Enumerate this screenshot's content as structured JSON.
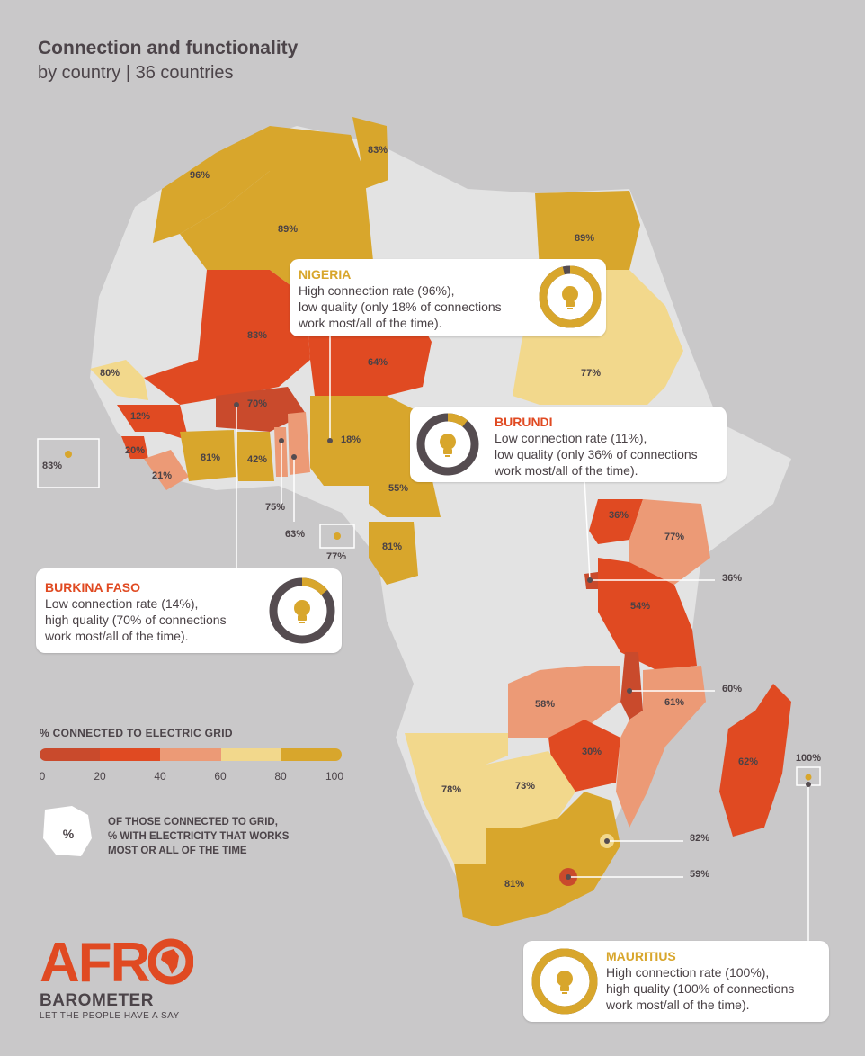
{
  "title": "Connection and functionality",
  "subtitle": "by country | 36 countries",
  "colors": {
    "background": "#c9c8c9",
    "land_nodata": "#e3e3e3",
    "bin_0_20": "#c94a2c",
    "bin_20_40": "#e04a22",
    "bin_40_60": "#ec9a76",
    "bin_60_80": "#f2d88c",
    "bin_80_100": "#d8a62c",
    "ring_dark": "#554c50",
    "ring_gold": "#d8a62c"
  },
  "legend": {
    "title": "% CONNECTED TO ELECTRIC GRID",
    "ticks": [
      "0",
      "20",
      "40",
      "60",
      "80",
      "100"
    ],
    "symbol": "%",
    "note": "OF THOSE CONNECTED TO GRID,\n% WITH ELECTRICITY THAT WORKS\nMOST OR ALL OF THE TIME"
  },
  "map_labels": [
    {
      "id": "morocco",
      "text": "96%"
    },
    {
      "id": "algeria",
      "text": "89%"
    },
    {
      "id": "tunisia",
      "text": "83%"
    },
    {
      "id": "egypt",
      "text": "89%"
    },
    {
      "id": "mali",
      "text": "83%"
    },
    {
      "id": "niger",
      "text": "64%"
    },
    {
      "id": "sudan",
      "text": "77%"
    },
    {
      "id": "senegal",
      "text": "80%"
    },
    {
      "id": "guinea",
      "text": "12%"
    },
    {
      "id": "burkina",
      "text": "70%"
    },
    {
      "id": "sierra_leone",
      "text": "20%"
    },
    {
      "id": "liberia",
      "text": "21%"
    },
    {
      "id": "cote_divoire",
      "text": "81%"
    },
    {
      "id": "ghana",
      "text": "42%"
    },
    {
      "id": "togo",
      "text": "75%"
    },
    {
      "id": "benin",
      "text": "63%"
    },
    {
      "id": "nigeria",
      "text": "18%"
    },
    {
      "id": "cameroon",
      "text": "55%"
    },
    {
      "id": "gabon",
      "text": "81%"
    },
    {
      "id": "cabo_verde",
      "text": "83%"
    },
    {
      "id": "sao_tome",
      "text": "77%"
    },
    {
      "id": "uganda",
      "text": "36%"
    },
    {
      "id": "kenya",
      "text": "77%"
    },
    {
      "id": "burundi",
      "text": "36%"
    },
    {
      "id": "tanzania",
      "text": "54%"
    },
    {
      "id": "malawi",
      "text": "60%"
    },
    {
      "id": "zambia",
      "text": "58%"
    },
    {
      "id": "mozambique",
      "text": "61%"
    },
    {
      "id": "zimbabwe",
      "text": "30%"
    },
    {
      "id": "madagascar",
      "text": "62%"
    },
    {
      "id": "mauritius",
      "text": "100%"
    },
    {
      "id": "namibia",
      "text": "78%"
    },
    {
      "id": "botswana",
      "text": "73%"
    },
    {
      "id": "swaziland",
      "text": "82%"
    },
    {
      "id": "lesotho",
      "text": "59%"
    },
    {
      "id": "south_africa",
      "text": "81%"
    }
  ],
  "callouts": {
    "nigeria": {
      "name": "NIGERIA",
      "text": "High connection rate (96%),\nlow quality (only 18% of connections\nwork most/all of the time).",
      "connection": 96,
      "quality": 18
    },
    "burundi": {
      "name": "BURUNDI",
      "text": "Low connection rate (11%),\nlow quality (only 36% of connections\nwork most/all of the time).",
      "connection": 11,
      "quality": 36
    },
    "burkina": {
      "name": "BURKINA FASO",
      "text": "Low connection rate (14%),\nhigh quality (70% of connections\nwork most/all of the time).",
      "connection": 14,
      "quality": 70
    },
    "mauritius": {
      "name": "MAURITIUS",
      "text": "High connection rate (100%),\nhigh quality (100% of connections\nwork most/all of the time).",
      "connection": 100,
      "quality": 100
    }
  },
  "brand": {
    "afro": "AFR",
    "barometer": "BAROMETER",
    "tagline": "LET THE PEOPLE HAVE A SAY"
  }
}
